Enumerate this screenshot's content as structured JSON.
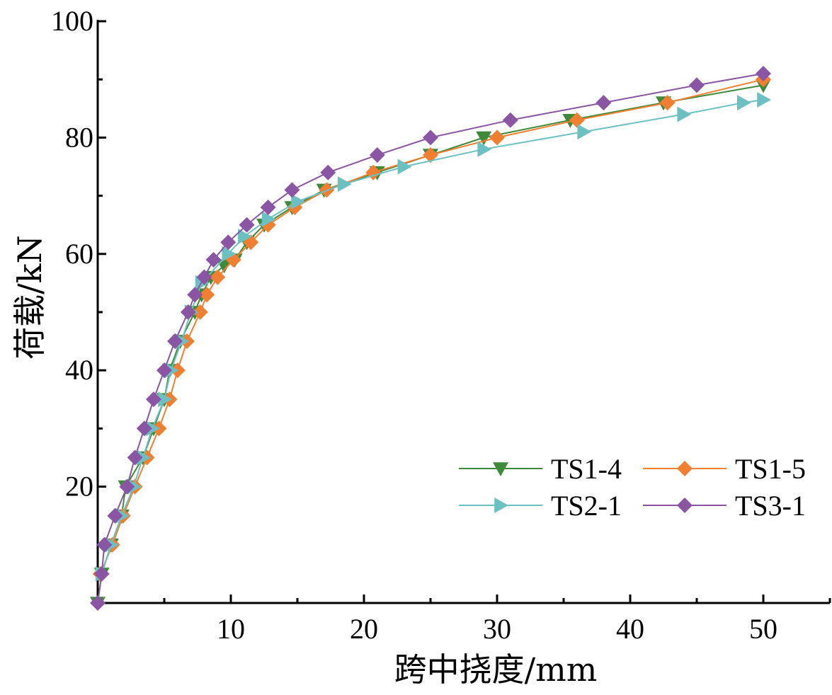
{
  "chart_data": {
    "type": "line",
    "xlabel": "跨中挠度/mm",
    "ylabel": "荷载/kN",
    "xlim": [
      0,
      55
    ],
    "ylim": [
      0,
      100
    ],
    "xticks": [
      10,
      20,
      30,
      40,
      50
    ],
    "yticks": [
      20,
      40,
      60,
      80,
      100
    ],
    "grid": false,
    "legend_position": "bottom-right",
    "series": [
      {
        "name": "TS1-4",
        "color": "#3f8a3a",
        "marker": "triangle-down",
        "points": [
          [
            0,
            0
          ],
          [
            0.3,
            5
          ],
          [
            1.0,
            10
          ],
          [
            1.8,
            15
          ],
          [
            2.1,
            20
          ],
          [
            3.4,
            25
          ],
          [
            4.2,
            30
          ],
          [
            5.0,
            35
          ],
          [
            5.4,
            40
          ],
          [
            6.2,
            45
          ],
          [
            7.3,
            50
          ],
          [
            7.8,
            53
          ],
          [
            8.5,
            56
          ],
          [
            9.5,
            58
          ],
          [
            10.3,
            59
          ],
          [
            11.2,
            62
          ],
          [
            12.5,
            65
          ],
          [
            14.6,
            68
          ],
          [
            17.0,
            71
          ],
          [
            21.0,
            74
          ],
          [
            25.0,
            77
          ],
          [
            29.0,
            80
          ],
          [
            35.5,
            83
          ],
          [
            42.5,
            86
          ],
          [
            50.0,
            89
          ]
        ]
      },
      {
        "name": "TS1-5",
        "color": "#f07f32",
        "marker": "diamond",
        "points": [
          [
            0.2,
            5
          ],
          [
            1.1,
            10
          ],
          [
            1.9,
            15
          ],
          [
            2.8,
            20
          ],
          [
            3.7,
            25
          ],
          [
            4.6,
            30
          ],
          [
            5.4,
            35
          ],
          [
            6.0,
            40
          ],
          [
            6.7,
            45
          ],
          [
            7.7,
            50
          ],
          [
            8.2,
            53
          ],
          [
            9.0,
            56
          ],
          [
            10.2,
            59
          ],
          [
            11.5,
            62
          ],
          [
            12.8,
            65
          ],
          [
            14.8,
            68
          ],
          [
            17.2,
            71
          ],
          [
            20.7,
            74
          ],
          [
            25.0,
            77
          ],
          [
            30.0,
            80
          ],
          [
            36.0,
            83
          ],
          [
            42.8,
            86
          ],
          [
            50.0,
            90
          ]
        ]
      },
      {
        "name": "TS2-1",
        "color": "#6cc0c2",
        "marker": "triangle-right",
        "points": [
          [
            0.3,
            5
          ],
          [
            1.0,
            10
          ],
          [
            1.8,
            15
          ],
          [
            2.7,
            20
          ],
          [
            3.4,
            25
          ],
          [
            4.1,
            30
          ],
          [
            5.0,
            35
          ],
          [
            5.5,
            40
          ],
          [
            6.3,
            45
          ],
          [
            7.0,
            50
          ],
          [
            7.8,
            55
          ],
          [
            9.8,
            60
          ],
          [
            11.0,
            63
          ],
          [
            12.8,
            66
          ],
          [
            15.0,
            69
          ],
          [
            18.5,
            72
          ],
          [
            23.0,
            75
          ],
          [
            29.0,
            78
          ],
          [
            36.5,
            81
          ],
          [
            44.0,
            84
          ],
          [
            48.5,
            86
          ],
          [
            50.0,
            86.5
          ]
        ]
      },
      {
        "name": "TS3-1",
        "color": "#8a55a3",
        "marker": "diamond",
        "points": [
          [
            0,
            0
          ],
          [
            0.3,
            5
          ],
          [
            0.5,
            10
          ],
          [
            1.3,
            15
          ],
          [
            2.2,
            20
          ],
          [
            2.8,
            25
          ],
          [
            3.5,
            30
          ],
          [
            4.2,
            35
          ],
          [
            5.0,
            40
          ],
          [
            5.8,
            45
          ],
          [
            6.8,
            50
          ],
          [
            7.3,
            53
          ],
          [
            8.0,
            56
          ],
          [
            8.7,
            59
          ],
          [
            9.8,
            62
          ],
          [
            11.2,
            65
          ],
          [
            12.8,
            68
          ],
          [
            14.6,
            71
          ],
          [
            17.3,
            74
          ],
          [
            21.0,
            77
          ],
          [
            25.0,
            80
          ],
          [
            31.0,
            83
          ],
          [
            38.0,
            86
          ],
          [
            45.0,
            89
          ],
          [
            50.0,
            91
          ]
        ]
      }
    ]
  }
}
